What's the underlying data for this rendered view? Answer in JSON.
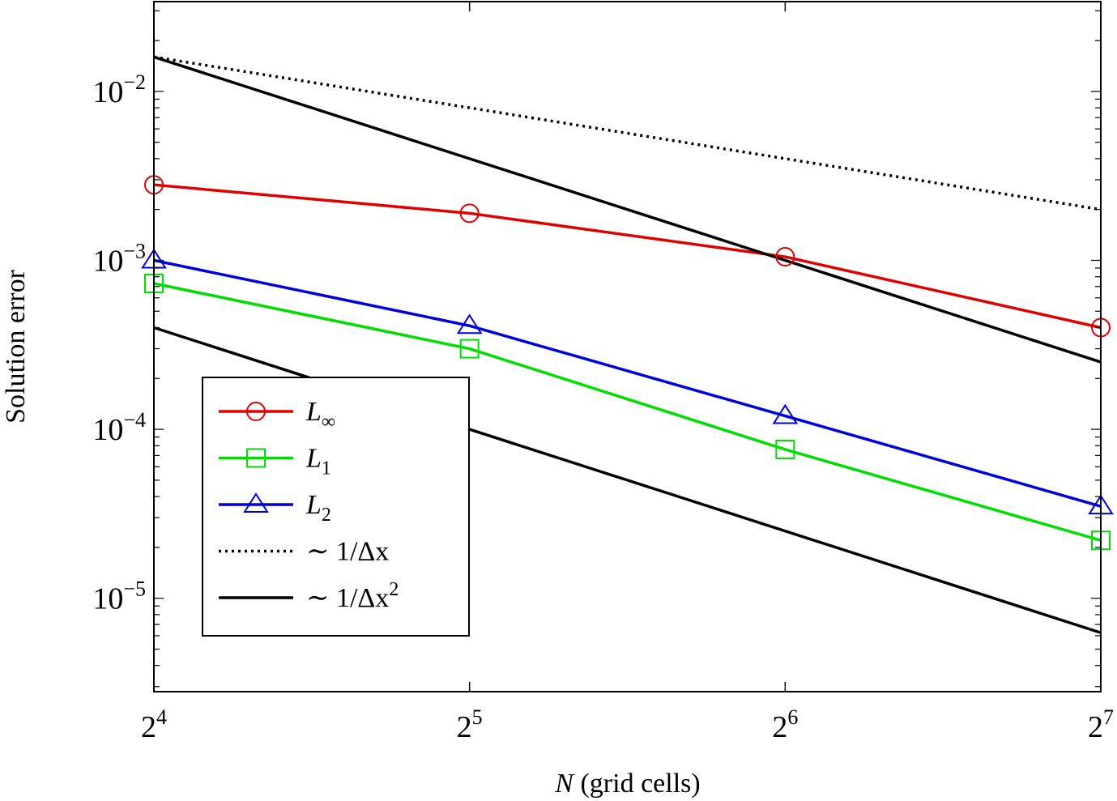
{
  "chart_data": {
    "type": "line",
    "xscale": "log2",
    "yscale": "log10",
    "xlabel": "N (grid cells)",
    "xlabel_var": "N",
    "xlabel_rest": " (grid cells)",
    "ylabel": "Solution error",
    "xlim": [
      16,
      128
    ],
    "ylim": [
      2.8e-06,
      0.034
    ],
    "xticks": [
      {
        "value": 16,
        "base": "2",
        "exp": "4"
      },
      {
        "value": 32,
        "base": "2",
        "exp": "5"
      },
      {
        "value": 64,
        "base": "2",
        "exp": "6"
      },
      {
        "value": 128,
        "base": "2",
        "exp": "7"
      }
    ],
    "yticks": [
      {
        "value": 0.01,
        "base": "10",
        "exp": "−2"
      },
      {
        "value": 0.001,
        "base": "10",
        "exp": "−3"
      },
      {
        "value": 0.0001,
        "base": "10",
        "exp": "−4"
      },
      {
        "value": 1e-05,
        "base": "10",
        "exp": "−5"
      }
    ],
    "grid": false,
    "legend_position": "lower-left",
    "series": [
      {
        "key": "linf",
        "name": "L∞",
        "name_main": "L",
        "name_sub": "∞",
        "color": "#e00000",
        "marker": "circle",
        "dash": "solid",
        "x": [
          16,
          32,
          64,
          128
        ],
        "y": [
          0.0028,
          0.0019,
          0.00105,
          0.0004
        ]
      },
      {
        "key": "l1",
        "name": "L1",
        "name_main": "L",
        "name_sub": "1",
        "color": "#00dd00",
        "marker": "square",
        "dash": "solid",
        "x": [
          16,
          32,
          64,
          128
        ],
        "y": [
          0.00073,
          0.0003,
          7.6e-05,
          2.2e-05
        ]
      },
      {
        "key": "l2",
        "name": "L2",
        "name_main": "L",
        "name_sub": "2",
        "color": "#0000dd",
        "marker": "triangle",
        "dash": "solid",
        "x": [
          16,
          32,
          64,
          128
        ],
        "y": [
          0.001,
          0.00041,
          0.00012,
          3.5e-05
        ]
      },
      {
        "key": "first",
        "name": "∼ 1/Δx",
        "name_main": "∼ 1/Δx",
        "name_sup": "",
        "color": "#000000",
        "marker": "none",
        "dash": "dotted",
        "x": [
          16,
          128
        ],
        "y": [
          0.016,
          0.002
        ]
      },
      {
        "key": "second_a",
        "name": "∼ 1/Δx²",
        "name_main": "∼ 1/Δx",
        "name_sup": "2",
        "color": "#000000",
        "marker": "none",
        "dash": "solid",
        "x": [
          16,
          128
        ],
        "y": [
          0.016,
          0.00025
        ]
      },
      {
        "key": "second_b",
        "name": "",
        "color": "#000000",
        "marker": "none",
        "dash": "solid",
        "legend": false,
        "x": [
          16,
          128
        ],
        "y": [
          0.0004,
          6.25e-06
        ]
      }
    ]
  }
}
